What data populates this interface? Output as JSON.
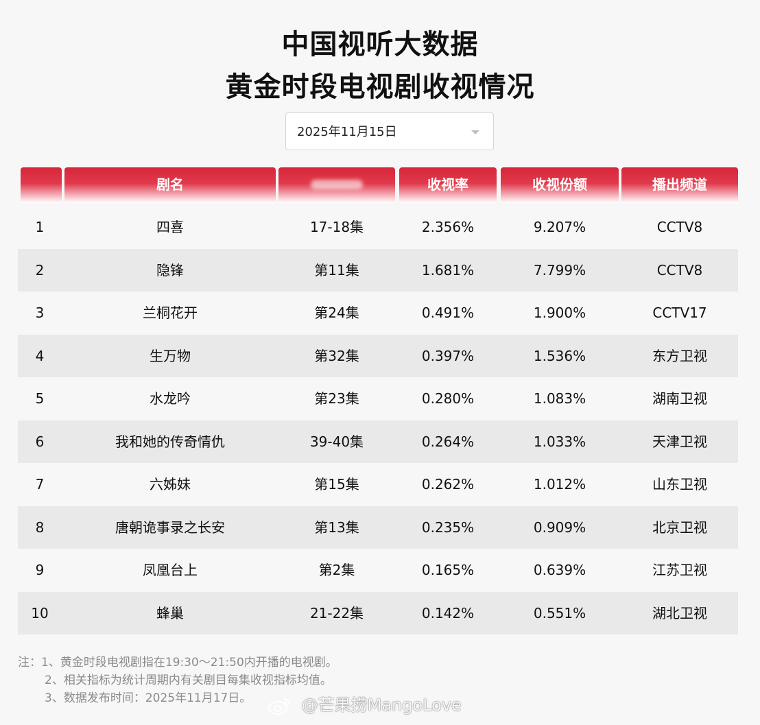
{
  "title": {
    "line1": "中国视听大数据",
    "line2": "黄金时段电视剧收视情况"
  },
  "date_select": {
    "value": "2025年11月15日",
    "icon": "chevron-down-icon"
  },
  "table": {
    "headers": [
      "",
      "剧名",
      "",
      "收视率",
      "收视份额",
      "播出频道"
    ],
    "rows": [
      [
        "1",
        "四喜",
        "17-18集",
        "2.356%",
        "9.207%",
        "CCTV8"
      ],
      [
        "2",
        "隐锋",
        "第11集",
        "1.681%",
        "7.799%",
        "CCTV8"
      ],
      [
        "3",
        "兰桐花开",
        "第24集",
        "0.491%",
        "1.900%",
        "CCTV17"
      ],
      [
        "4",
        "生万物",
        "第32集",
        "0.397%",
        "1.536%",
        "东方卫视"
      ],
      [
        "5",
        "水龙吟",
        "第23集",
        "0.280%",
        "1.083%",
        "湖南卫视"
      ],
      [
        "6",
        "我和她的传奇情仇",
        "39-40集",
        "0.264%",
        "1.033%",
        "天津卫视"
      ],
      [
        "7",
        "六姊妹",
        "第15集",
        "0.262%",
        "1.012%",
        "山东卫视"
      ],
      [
        "8",
        "唐朝诡事录之长安",
        "第13集",
        "0.235%",
        "0.909%",
        "北京卫视"
      ],
      [
        "9",
        "凤凰台上",
        "第2集",
        "0.165%",
        "0.639%",
        "江苏卫视"
      ],
      [
        "10",
        "蜂巢",
        "21-22集",
        "0.142%",
        "0.551%",
        "湖北卫视"
      ]
    ]
  },
  "notes": [
    "注：1、黄金时段电视剧指在19:30～21:50内开播的电视剧。",
    "2、相关指标为统计周期内有关剧目每集收视指标均值。",
    "3、数据发布时间：2025年11月17日。"
  ],
  "watermark": {
    "text": "@芒果捞MangoLove",
    "icon": "weibo-logo-icon"
  },
  "colors": {
    "header_red": "#d8263a",
    "alt_row": "#e9e9e9",
    "background": "#f7f7f7"
  }
}
